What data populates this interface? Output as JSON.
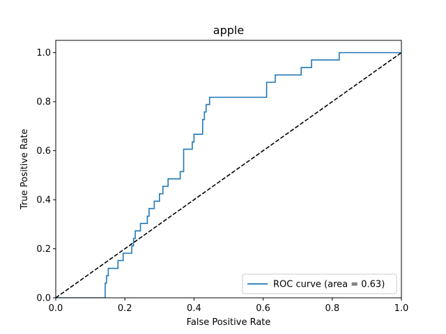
{
  "chart_data": {
    "type": "line",
    "title": "apple",
    "xlabel": "False Positive Rate",
    "ylabel": "True Positive Rate",
    "xlim": [
      0.0,
      1.0
    ],
    "ylim": [
      0.0,
      1.05
    ],
    "grid": false,
    "legend_position": "bottom-right",
    "xticks": [
      "0.0",
      "0.2",
      "0.4",
      "0.6",
      "0.8",
      "1.0"
    ],
    "yticks": [
      "0.0",
      "0.2",
      "0.4",
      "0.6",
      "0.8",
      "1.0"
    ],
    "series": [
      {
        "name": "ROC curve (area = 0.63)",
        "color": "#1f77b4",
        "style": "solid",
        "step": true,
        "x": [
          0.0,
          0.143,
          0.143,
          0.147,
          0.147,
          0.152,
          0.152,
          0.18,
          0.18,
          0.195,
          0.195,
          0.22,
          0.22,
          0.225,
          0.225,
          0.23,
          0.23,
          0.245,
          0.245,
          0.265,
          0.265,
          0.27,
          0.27,
          0.285,
          0.285,
          0.3,
          0.3,
          0.31,
          0.31,
          0.325,
          0.325,
          0.36,
          0.36,
          0.37,
          0.37,
          0.395,
          0.395,
          0.4,
          0.4,
          0.425,
          0.425,
          0.43,
          0.43,
          0.435,
          0.435,
          0.445,
          0.445,
          0.61,
          0.61,
          0.635,
          0.635,
          0.71,
          0.71,
          0.74,
          0.74,
          0.82,
          0.82,
          1.0
        ],
        "y": [
          0.0,
          0.0,
          0.06,
          0.06,
          0.09,
          0.09,
          0.12,
          0.12,
          0.152,
          0.152,
          0.182,
          0.182,
          0.212,
          0.212,
          0.242,
          0.242,
          0.273,
          0.273,
          0.303,
          0.303,
          0.333,
          0.333,
          0.364,
          0.364,
          0.394,
          0.394,
          0.424,
          0.424,
          0.455,
          0.455,
          0.485,
          0.485,
          0.515,
          0.515,
          0.606,
          0.606,
          0.636,
          0.636,
          0.667,
          0.667,
          0.727,
          0.727,
          0.758,
          0.758,
          0.788,
          0.788,
          0.818,
          0.818,
          0.879,
          0.879,
          0.909,
          0.909,
          0.939,
          0.939,
          0.97,
          0.97,
          1.0,
          1.0
        ]
      },
      {
        "color": "#000000",
        "style": "dashed",
        "x": [
          0.0,
          1.0
        ],
        "y": [
          0.0,
          1.0
        ]
      }
    ]
  }
}
